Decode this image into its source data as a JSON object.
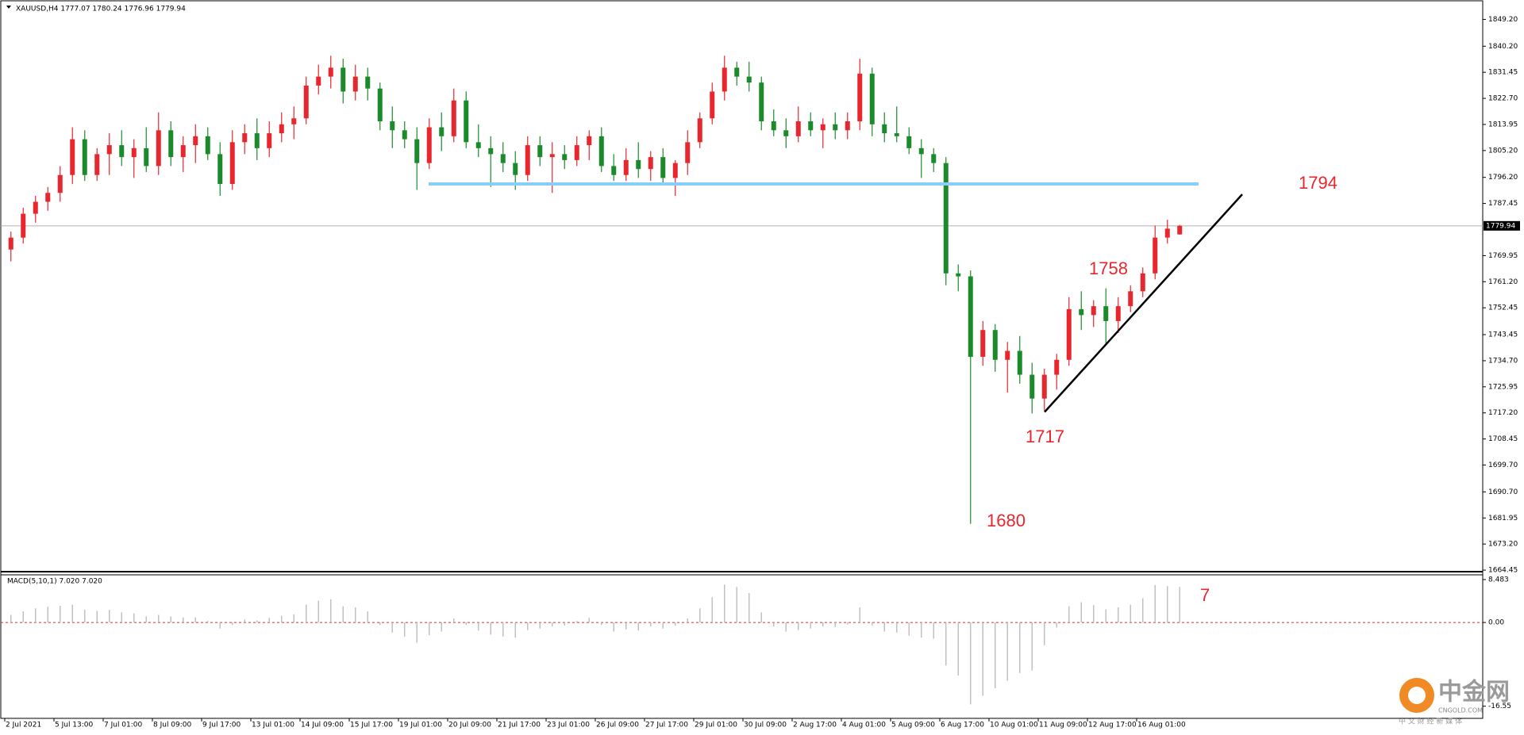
{
  "chart_data": {
    "type": "candlestick",
    "title": "XAUUSD,H4  1777.07 1780.24 1776.96 1779.94",
    "subtitle": "MACD(5,10,1) 7.020 7.020",
    "up_color": "#e8262d",
    "down_color": "#1b8a2b",
    "categories": [
      "2 Jul 2021",
      null,
      null,
      null,
      "5 Jul 13:00",
      null,
      null,
      null,
      "7 Jul 01:00",
      null,
      null,
      null,
      "8 Jul 09:00",
      null,
      null,
      null,
      "9 Jul 17:00",
      null,
      null,
      null,
      "13 Jul 01:00",
      null,
      null,
      null,
      "14 Jul 09:00",
      null,
      null,
      null,
      "15 Jul 17:00",
      null,
      null,
      null,
      "19 Jul 01:00",
      null,
      null,
      null,
      "20 Jul 09:00",
      null,
      null,
      null,
      "21 Jul 17:00",
      null,
      null,
      null,
      "23 Jul 01:00",
      null,
      null,
      null,
      "26 Jul 09:00",
      null,
      null,
      null,
      "27 Jul 17:00",
      null,
      null,
      null,
      "29 Jul 01:00",
      null,
      null,
      null,
      "30 Jul 09:00",
      null,
      null,
      null,
      "2 Aug 17:00",
      null,
      null,
      null,
      "4 Aug 01:00",
      null,
      null,
      null,
      "5 Aug 09:00",
      null,
      null,
      null,
      "6 Aug 17:00",
      null,
      null,
      null,
      "10 Aug 01:00",
      null,
      null,
      null,
      "11 Aug 09:00",
      null,
      null,
      null,
      "12 Aug 17:00",
      null,
      null,
      null,
      "16 Aug 01:00",
      null,
      null,
      null
    ],
    "open": [
      1772,
      1776,
      1784,
      1788,
      1791,
      1797,
      1809,
      1797,
      1804,
      1807,
      1803,
      1806,
      1800,
      1812,
      1803,
      1807,
      1810,
      1804,
      1794,
      1808,
      1811,
      1806,
      1811,
      1814,
      1816,
      1827,
      1830,
      1833,
      1825,
      1830,
      1826,
      1815,
      1812,
      1809,
      1801,
      1813,
      1810,
      1822,
      1808,
      1806,
      1804,
      1801,
      1797,
      1807,
      1803,
      1804,
      1802,
      1807,
      1810,
      1800,
      1797,
      1802,
      1799,
      1803,
      1796,
      1801,
      1808,
      1816,
      1825,
      1833,
      1830,
      1828,
      1815,
      1812,
      1810,
      1815,
      1812,
      1814,
      1812,
      1815,
      1831,
      1814,
      1811,
      1810,
      1806,
      1804,
      1801,
      1764,
      1763,
      1736,
      1745,
      1735,
      1738,
      1730,
      1722,
      1730,
      1735,
      1752,
      1750,
      1753,
      1748,
      1753,
      1758,
      1764,
      1776,
      1777.07
    ],
    "high": [
      1778,
      1786,
      1790,
      1793,
      1800,
      1813,
      1812,
      1806,
      1811,
      1812,
      1809,
      1813,
      1818,
      1815,
      1810,
      1814,
      1813,
      1808,
      1812,
      1814,
      1816,
      1815,
      1818,
      1820,
      1830,
      1834,
      1837,
      1836,
      1834,
      1833,
      1828,
      1820,
      1815,
      1813,
      1816,
      1818,
      1826,
      1825,
      1814,
      1810,
      1808,
      1805,
      1810,
      1810,
      1808,
      1807,
      1810,
      1812,
      1813,
      1804,
      1806,
      1808,
      1805,
      1806,
      1802,
      1812,
      1818,
      1828,
      1837,
      1835,
      1835,
      1830,
      1819,
      1816,
      1820,
      1818,
      1816,
      1818,
      1818,
      1836,
      1833,
      1818,
      1820,
      1813,
      1809,
      1806,
      1803,
      1767,
      1765,
      1748,
      1747,
      1741,
      1743,
      1734,
      1732,
      1737,
      1756,
      1758,
      1755,
      1759,
      1756,
      1760,
      1766,
      1780,
      1782,
      1780.24
    ],
    "low": [
      1768,
      1774,
      1781,
      1785,
      1788,
      1794,
      1795,
      1795,
      1797,
      1800,
      1796,
      1798,
      1797,
      1800,
      1798,
      1801,
      1802,
      1790,
      1792,
      1804,
      1802,
      1803,
      1808,
      1809,
      1814,
      1824,
      1826,
      1821,
      1822,
      1822,
      1812,
      1806,
      1806,
      1792,
      1799,
      1805,
      1808,
      1806,
      1803,
      1793,
      1798,
      1792,
      1795,
      1800,
      1791,
      1799,
      1800,
      1802,
      1798,
      1795,
      1795,
      1796,
      1795,
      1794,
      1790,
      1797,
      1806,
      1814,
      1822,
      1827,
      1825,
      1812,
      1810,
      1806,
      1808,
      1810,
      1806,
      1809,
      1809,
      1812,
      1810,
      1808,
      1808,
      1804,
      1796,
      1798,
      1760,
      1758,
      1680,
      1733,
      1731,
      1724,
      1727,
      1717,
      1718,
      1725,
      1733,
      1745,
      1746,
      1740,
      1744,
      1751,
      1756,
      1762,
      1774,
      1776.96
    ],
    "close": [
      1776,
      1784,
      1788,
      1791,
      1797,
      1809,
      1797,
      1804,
      1807,
      1803,
      1806,
      1800,
      1812,
      1803,
      1807,
      1810,
      1804,
      1794,
      1808,
      1811,
      1806,
      1811,
      1814,
      1816,
      1827,
      1830,
      1833,
      1825,
      1830,
      1826,
      1815,
      1812,
      1809,
      1801,
      1813,
      1810,
      1822,
      1808,
      1806,
      1804,
      1801,
      1797,
      1807,
      1803,
      1804,
      1802,
      1807,
      1810,
      1800,
      1797,
      1802,
      1799,
      1803,
      1796,
      1801,
      1808,
      1816,
      1825,
      1833,
      1830,
      1828,
      1815,
      1812,
      1810,
      1815,
      1812,
      1814,
      1812,
      1815,
      1831,
      1814,
      1811,
      1810,
      1806,
      1804,
      1801,
      1764,
      1763,
      1736,
      1745,
      1735,
      1738,
      1730,
      1722,
      1730,
      1735,
      1752,
      1750,
      1753,
      1748,
      1753,
      1758,
      1764,
      1776,
      1779,
      1779.94
    ],
    "ylim": [
      1664.2,
      1855.7
    ],
    "yticks": [
      {
        "value": 1849.2,
        "label": "1849.20"
      },
      {
        "value": 1840.2,
        "label": "1840.20"
      },
      1831.45,
      {
        "value": 1822.7,
        "label": "1822.70"
      },
      1813.95,
      {
        "value": 1805.2,
        "label": "1805.20"
      },
      {
        "value": 1796.2,
        "label": "1796.20"
      },
      1787.45,
      1769.95,
      {
        "value": 1761.2,
        "label": "1761.20"
      },
      1752.45,
      1743.45,
      {
        "value": 1734.7,
        "label": "1734.70"
      },
      1725.95,
      {
        "value": 1717.2,
        "label": "1717.20"
      },
      1708.45,
      {
        "value": 1699.7,
        "label": "1699.70"
      },
      {
        "value": 1690.7,
        "label": "1690.70"
      },
      1681.95,
      {
        "value": 1673.2,
        "label": "1673.20"
      },
      1664.45
    ],
    "last_price": 1779.94,
    "annotations": [
      1794,
      1758,
      1717,
      1680,
      7
    ],
    "trendline": {
      "start": 1717.5,
      "end": 1790.5
    },
    "macd": {
      "name": "MACD(5,10,1)",
      "color": "#c0c0c0",
      "axis": "y2",
      "values": [
        1.5,
        2.2,
        2.8,
        3.1,
        3.3,
        3.5,
        2.5,
        2.3,
        2.5,
        2.0,
        1.8,
        1.2,
        1.5,
        1.2,
        1.0,
        1.0,
        0.3,
        -1.2,
        -0.5,
        0.6,
        0.4,
        0.9,
        1.3,
        1.6,
        3.5,
        4.3,
        4.6,
        3.2,
        3.0,
        2.2,
        -0.5,
        -2.0,
        -2.8,
        -4.0,
        -2.5,
        -1.8,
        0.8,
        -0.5,
        -1.6,
        -2.4,
        -2.8,
        -3.0,
        -1.5,
        -1.2,
        -0.8,
        -0.6,
        0.3,
        0.9,
        -0.5,
        -1.8,
        -1.4,
        -1.6,
        -0.8,
        -1.2,
        -0.6,
        0.8,
        2.8,
        5.0,
        7.5,
        7.0,
        5.8,
        2.0,
        -0.8,
        -1.8,
        -1.5,
        -1.2,
        -0.8,
        -0.9,
        -0.4,
        3.0,
        -0.6,
        -1.8,
        -2.0,
        -2.6,
        -3.0,
        -3.2,
        -8.5,
        -10.5,
        -16.2,
        -14.5,
        -13.0,
        -11.5,
        -10.0,
        -9.5,
        -4.5,
        -1.0,
        3.2,
        4.0,
        3.4,
        2.6,
        3.0,
        3.5,
        4.8,
        7.4,
        7.2,
        7.02
      ]
    },
    "y2lim": [
      -18.8,
      9.42
    ],
    "y2ticks": [
      8.483,
      {
        "value": 0,
        "label": "0.00"
      },
      -16.55
    ]
  },
  "watermark": {
    "brand": "中金网",
    "site": "CNGOLD.COM",
    "slogan": "中 文 财 经 新 媒 体"
  }
}
